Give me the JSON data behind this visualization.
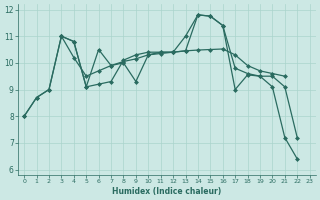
{
  "xlabel": "Humidex (Indice chaleur)",
  "bg_color": "#cce8e4",
  "line_color": "#2a6b60",
  "grid_color": "#aad4cc",
  "xlim": [
    -0.5,
    23.5
  ],
  "ylim": [
    5.8,
    12.2
  ],
  "xticks": [
    0,
    1,
    2,
    3,
    4,
    5,
    6,
    7,
    8,
    9,
    10,
    11,
    12,
    13,
    14,
    15,
    16,
    17,
    18,
    19,
    20,
    21,
    22,
    23
  ],
  "yticks": [
    6,
    7,
    8,
    9,
    10,
    11,
    12
  ],
  "series1_x": [
    0,
    1,
    2,
    3,
    4,
    5,
    6,
    7,
    8,
    9,
    10,
    11,
    12,
    13,
    14,
    15,
    16,
    17,
    18,
    19,
    20,
    21,
    22
  ],
  "series1_y": [
    8.0,
    8.7,
    9.0,
    11.0,
    10.8,
    9.1,
    9.2,
    9.3,
    10.1,
    10.3,
    10.4,
    10.4,
    10.4,
    11.0,
    11.8,
    11.75,
    11.4,
    9.0,
    9.55,
    9.5,
    9.1,
    7.2,
    6.4
  ],
  "series2_x": [
    0,
    1,
    2,
    3,
    4,
    5,
    6,
    7,
    8,
    9,
    10,
    11,
    12,
    13,
    14,
    15,
    16,
    17,
    18,
    19,
    20,
    21
  ],
  "series2_y": [
    8.0,
    8.7,
    9.0,
    11.0,
    10.2,
    9.5,
    9.7,
    9.9,
    10.05,
    10.15,
    10.3,
    10.35,
    10.4,
    10.45,
    10.48,
    10.5,
    10.52,
    10.3,
    9.9,
    9.7,
    9.6,
    9.5
  ],
  "series3_x": [
    3,
    4,
    5,
    6,
    7,
    8,
    9,
    10,
    11,
    12,
    13,
    14,
    15,
    16,
    17,
    18,
    19,
    20,
    21,
    22
  ],
  "series3_y": [
    11.0,
    10.8,
    9.1,
    10.5,
    9.9,
    10.0,
    9.3,
    10.3,
    10.4,
    10.4,
    10.45,
    11.8,
    11.75,
    11.4,
    9.8,
    9.6,
    9.5,
    9.5,
    9.1,
    7.2
  ]
}
